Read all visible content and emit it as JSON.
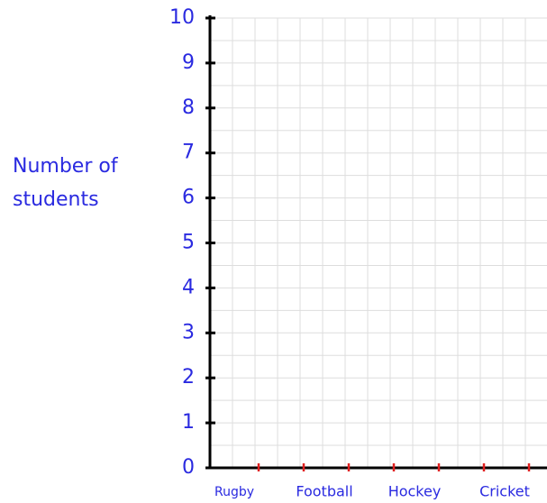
{
  "chart_data": {
    "type": "bar",
    "categories": [
      "Rugby",
      "Football",
      "Hockey",
      "Cricket"
    ],
    "ylabel": "Number of students",
    "ylim": [
      0,
      10
    ],
    "yticks": [
      0,
      1,
      2,
      3,
      4,
      5,
      6,
      7,
      8,
      9,
      10
    ],
    "grid": true
  }
}
